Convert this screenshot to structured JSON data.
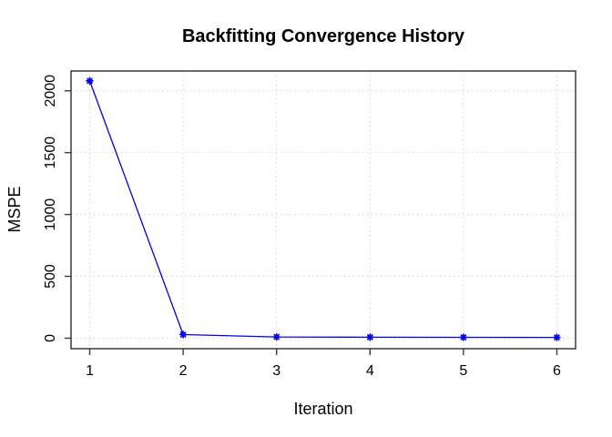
{
  "figure": {
    "background": "#ffffff"
  },
  "chart_data": {
    "type": "line",
    "title": "Backfitting Convergence History",
    "xlabel": "Iteration",
    "ylabel": "MSPE",
    "x": [
      1,
      2,
      3,
      4,
      5,
      6
    ],
    "y": [
      2080,
      29,
      10,
      8,
      7,
      6
    ],
    "series": [
      {
        "name": "MSPE",
        "x": [
          1,
          2,
          3,
          4,
          5,
          6
        ],
        "values": [
          2080,
          29,
          10,
          8,
          7,
          6
        ]
      }
    ],
    "xticks": [
      1,
      2,
      3,
      4,
      5,
      6
    ],
    "yticks": [
      0,
      500,
      1000,
      1500,
      2000
    ],
    "xlim": [
      0.8,
      6.2
    ],
    "ylim": [
      -85,
      2160
    ],
    "grid": "dotted",
    "legend": "none",
    "marker": "asterisk",
    "colors": {
      "series": "#0000EE",
      "grid": "#D3D3D3",
      "box": "#3a3a3a",
      "tick": "#3a3a3a",
      "text": "#000000"
    }
  }
}
